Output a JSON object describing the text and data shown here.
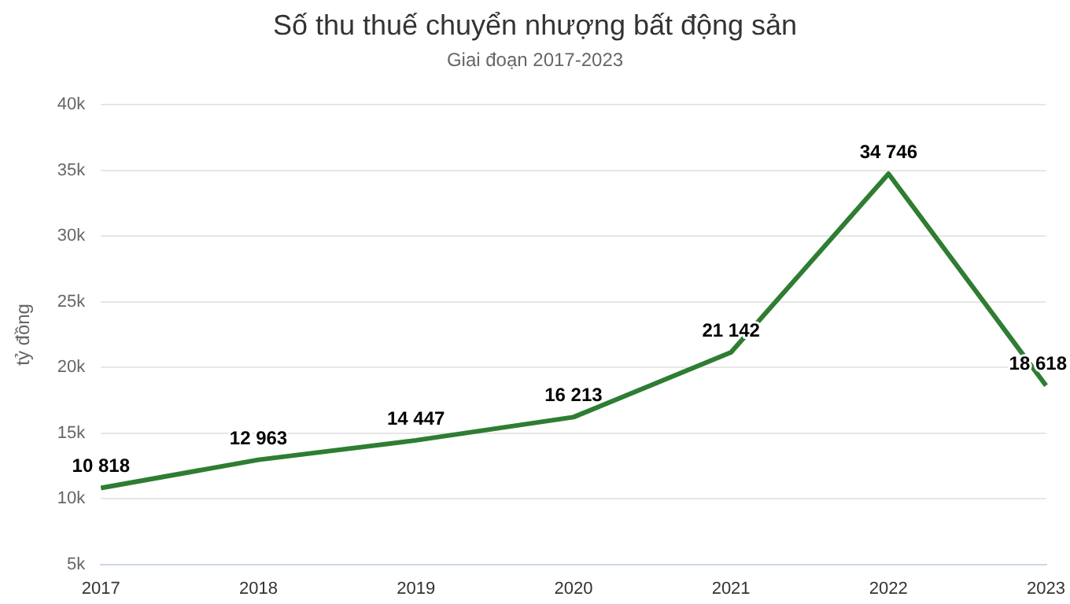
{
  "chart_data": {
    "type": "line",
    "title": "Số thu thuế chuyển nhượng bất động sản",
    "subtitle": "Giai đoạn 2017-2023",
    "ylabel": "tỷ đồng",
    "categories": [
      "2017",
      "2018",
      "2019",
      "2020",
      "2021",
      "2022",
      "2023"
    ],
    "series": [
      {
        "color": "#2e7d32",
        "values": [
          10818,
          12963,
          14447,
          16213,
          21142,
          34746,
          18618
        ]
      }
    ],
    "value_labels": [
      "10 818",
      "12 963",
      "14 447",
      "16 213",
      "21 142",
      "34 746",
      "18 618"
    ],
    "ylim": [
      5000,
      40000
    ],
    "yticks": [
      {
        "value": 5000,
        "label": "5k"
      },
      {
        "value": 10000,
        "label": "10k"
      },
      {
        "value": 15000,
        "label": "15k"
      },
      {
        "value": 20000,
        "label": "20k"
      },
      {
        "value": 25000,
        "label": "25k"
      },
      {
        "value": 30000,
        "label": "30k"
      },
      {
        "value": 35000,
        "label": "35k"
      },
      {
        "value": 40000,
        "label": "40k"
      }
    ],
    "grid": "y",
    "legend": false,
    "marker": "none",
    "line_style": "solid"
  }
}
